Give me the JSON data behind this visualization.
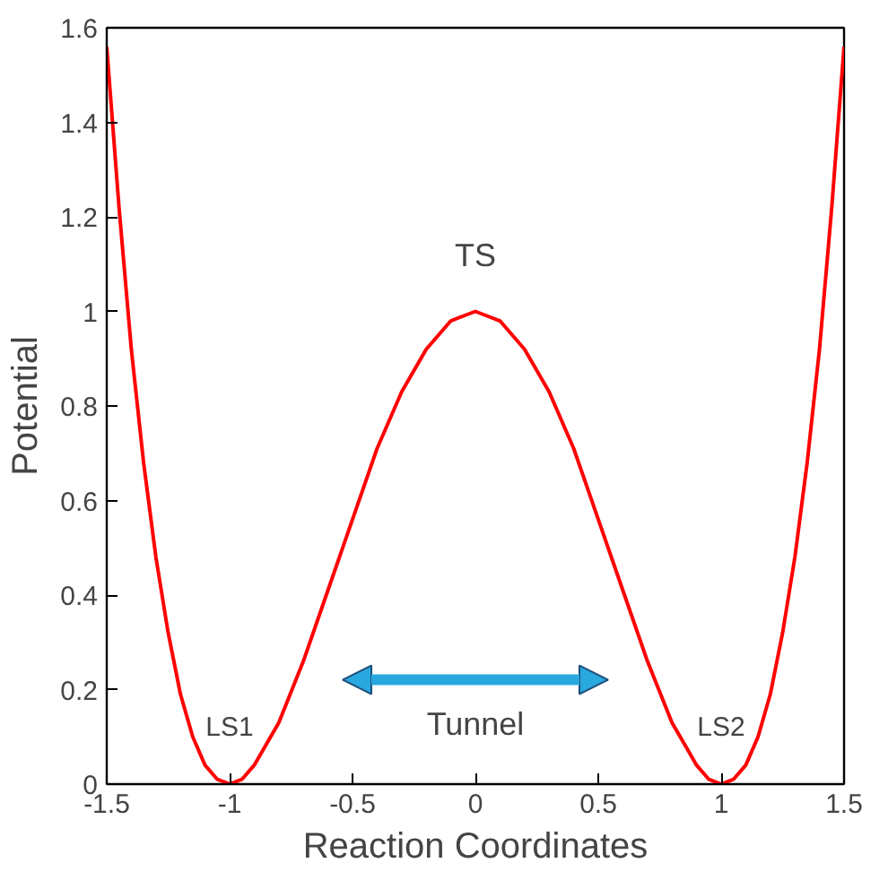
{
  "chart_data": {
    "type": "line",
    "xlabel": "Reaction Coordinates",
    "ylabel": "Potential",
    "x": [
      -1.5,
      -1.45,
      -1.4,
      -1.35,
      -1.3,
      -1.25,
      -1.2,
      -1.15,
      -1.1,
      -1.05,
      -1.0,
      -0.95,
      -0.9,
      -0.8,
      -0.7,
      -0.6,
      -0.5,
      -0.4,
      -0.3,
      -0.2,
      -0.1,
      0,
      0.1,
      0.2,
      0.3,
      0.4,
      0.5,
      0.6,
      0.7,
      0.8,
      0.9,
      0.95,
      1.0,
      1.05,
      1.1,
      1.15,
      1.2,
      1.25,
      1.3,
      1.35,
      1.4,
      1.45,
      1.5
    ],
    "series": [
      {
        "color": "#ff0000",
        "values": [
          1.56,
          1.22,
          0.92,
          0.68,
          0.48,
          0.32,
          0.19,
          0.1,
          0.04,
          0.01,
          0,
          0.01,
          0.04,
          0.13,
          0.26,
          0.41,
          0.56,
          0.71,
          0.83,
          0.92,
          0.98,
          1,
          0.98,
          0.92,
          0.83,
          0.71,
          0.56,
          0.41,
          0.26,
          0.13,
          0.04,
          0.01,
          0,
          0.01,
          0.04,
          0.1,
          0.19,
          0.32,
          0.48,
          0.68,
          0.92,
          1.22,
          1.56
        ]
      }
    ],
    "xlim": [
      -1.5,
      1.5
    ],
    "ylim": [
      0,
      1.6
    ],
    "xticks": [
      -1.5,
      -1,
      -0.5,
      0,
      0.5,
      1,
      1.5
    ],
    "yticks": [
      0,
      0.2,
      0.4,
      0.6,
      0.8,
      1,
      1.2,
      1.4,
      1.6
    ],
    "grid": false,
    "marker": "none",
    "line_style": "solid",
    "annotations": [
      {
        "text": "TS",
        "x": 0,
        "y": 1
      },
      {
        "text": "LS1",
        "x": -1,
        "y": 0
      },
      {
        "text": "LS2",
        "x": 1,
        "y": 0
      },
      "Tunnel"
    ]
  }
}
